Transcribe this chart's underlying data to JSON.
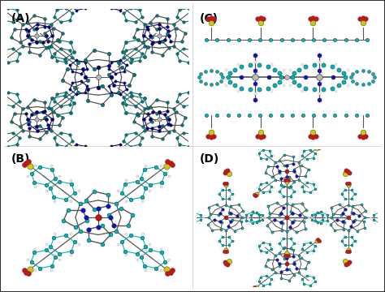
{
  "figure_width": 4.74,
  "figure_height": 3.6,
  "dpi": 100,
  "bg": "#ffffff",
  "border": "#333333",
  "cyan": "#00B5B5",
  "dark_cyan": "#007A7A",
  "blue": "#1010CC",
  "dark_blue": "#000080",
  "red": "#CC1010",
  "yellow": "#CCCC00",
  "gray": "#888888",
  "dark_gray": "#555555",
  "white_atom": "#E8E8E8",
  "light_gray": "#BBBBBB",
  "bond_color": "#888888",
  "label_fs": 10,
  "panels": [
    "(A)",
    "(B)",
    "(C)",
    "(D)"
  ]
}
